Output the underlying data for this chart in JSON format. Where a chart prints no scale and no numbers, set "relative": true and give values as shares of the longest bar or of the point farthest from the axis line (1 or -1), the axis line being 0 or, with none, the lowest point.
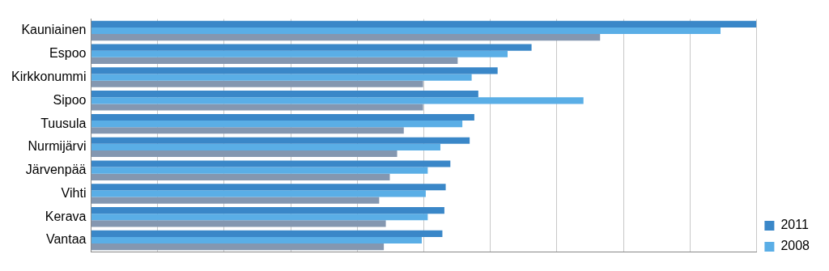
{
  "chart_data": {
    "type": "bar",
    "orientation": "horizontal",
    "relative": true,
    "grid": "x",
    "legend": "right",
    "categories": [
      "Kauniainen",
      "Espoo",
      "Kirkkonummi",
      "Sipoo",
      "Tuusula",
      "Nurmijärvi",
      "Järvenpää",
      "Vihti",
      "Kerava",
      "Vantaa"
    ],
    "series": [
      {
        "name": "2011",
        "color": "#3a87c8",
        "values": [
          1,
          0.662,
          0.611,
          0.582,
          0.576,
          0.569,
          0.54,
          0.533,
          0.531,
          0.528
        ]
      },
      {
        "name": "2008",
        "color": "#5aaee6",
        "values": [
          0.946,
          0.626,
          0.572,
          0.74,
          0.558,
          0.525,
          0.506,
          0.503,
          0.506,
          0.497
        ]
      },
      {
        "color": "#8497b0",
        "values": [
          0.765,
          0.551,
          0.499,
          0.499,
          0.47,
          0.46,
          0.449,
          0.433,
          0.443,
          0.44
        ]
      }
    ]
  }
}
